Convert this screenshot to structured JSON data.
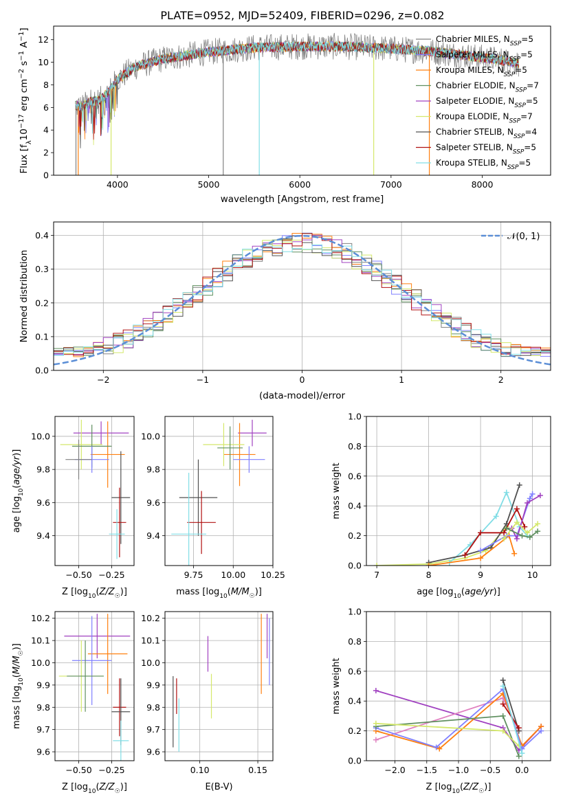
{
  "figure_title": "PLATE=0952, MJD=52409, FIBERID=0296, z=0.082",
  "colors": {
    "Chabrier MILES": "#808080",
    "Salpeter MILES": "#7f7fff",
    "Kroupa MILES": "#ff7f0e",
    "Chabrier ELODIE": "#5f8f5f",
    "Salpeter ELODIE": "#a040c0",
    "Kroupa ELODIE": "#d4e86a",
    "Chabrier STELIB": "#505050",
    "Salpeter STELIB": "#b01010",
    "Kroupa STELIB": "#80dde5",
    "normal": "#5b8ed6",
    "pink": "#e080c0"
  },
  "chart_data": [
    {
      "id": "spectrum",
      "type": "line",
      "title": "PLATE=0952, MJD=52409, FIBERID=0296, z=0.082",
      "xlabel": "wavelength [Angstrom, rest frame]",
      "ylabel": "Flux [f_λ10^-17 erg cm^-2 s^-1 A^-1]",
      "xlim": [
        3300,
        8750
      ],
      "ylim": [
        0,
        13.2
      ],
      "xticks": [
        4000,
        5000,
        6000,
        7000,
        8000
      ],
      "yticks": [
        0,
        2,
        4,
        6,
        8,
        10,
        12
      ],
      "legend_position": "right",
      "legend": [
        {
          "label": "Chabrier MILES, N_SSP=5",
          "base": "Chabrier MILES, N",
          "sub": "SSP",
          "tail": "=5",
          "color": "#808080"
        },
        {
          "label": "Salpeter MILES, N_SSP=5",
          "base": "Salpeter MILES, N",
          "sub": "SSP",
          "tail": "=5",
          "color": "#7f7fff"
        },
        {
          "label": "Kroupa MILES, N_SSP=5",
          "base": "Kroupa MILES, N",
          "sub": "SSP",
          "tail": "=5",
          "color": "#ff7f0e"
        },
        {
          "label": "Chabrier ELODIE, N_SSP=7",
          "base": "Chabrier ELODIE, N",
          "sub": "SSP",
          "tail": "=7",
          "color": "#5f8f5f"
        },
        {
          "label": "Salpeter ELODIE, N_SSP=5",
          "base": "Salpeter ELODIE, N",
          "sub": "SSP",
          "tail": "=5",
          "color": "#a040c0"
        },
        {
          "label": "Kroupa ELODIE, N_SSP=7",
          "base": "Kroupa ELODIE, N",
          "sub": "SSP",
          "tail": "=7",
          "color": "#d4e86a"
        },
        {
          "label": "Chabrier STELIB, N_SSP=4",
          "base": "Chabrier STELIB, N",
          "sub": "SSP",
          "tail": "=4",
          "color": "#505050"
        },
        {
          "label": "Salpeter STELIB, N_SSP=5",
          "base": "Salpeter STELIB, N",
          "sub": "SSP",
          "tail": "=5",
          "color": "#b01010"
        },
        {
          "label": "Kroupa STELIB, N_SSP=5",
          "base": "Kroupa STELIB, N",
          "sub": "SSP",
          "tail": "=5",
          "color": "#80dde5"
        }
      ],
      "continuum": {
        "x": [
          3540,
          3600,
          3700,
          3800,
          3900,
          4000,
          4200,
          4500,
          5000,
          5500,
          6000,
          6500,
          7000,
          7400,
          7800,
          8200,
          8400
        ],
        "y": [
          6.2,
          6.0,
          6.5,
          6.6,
          7.3,
          8.5,
          9.6,
          10.3,
          10.9,
          11.3,
          11.4,
          11.4,
          11.2,
          11.0,
          10.6,
          10.2,
          9.9
        ]
      },
      "data_range": [
        3540,
        8400
      ],
      "dips": [
        {
          "x": 3545,
          "y": 0.0,
          "color": "#808080"
        },
        {
          "x": 3570,
          "y": 0.0,
          "color": "#ff7f0e"
        },
        {
          "x": 3930,
          "y": 0.0,
          "color": "#d4e86a"
        },
        {
          "x": 5160,
          "y": 0.0,
          "color": "#808080"
        },
        {
          "x": 5555,
          "y": 0.0,
          "color": "#80dde5"
        },
        {
          "x": 6810,
          "y": 0.0,
          "color": "#d4e86a"
        },
        {
          "x": 7420,
          "y": 0.0,
          "color": "#ff7f0e"
        }
      ]
    },
    {
      "id": "residuals",
      "type": "line",
      "xlabel": "(data-model)/error",
      "ylabel": "Normed distribution",
      "xlim": [
        -2.5,
        2.5
      ],
      "ylim": [
        0,
        0.44
      ],
      "xticks": [
        -2,
        -1,
        0,
        1,
        2
      ],
      "yticks": [
        0.0,
        0.1,
        0.2,
        0.3,
        0.4
      ],
      "grid": true,
      "legend_position": "top-right",
      "legend_label": "𝒩(0, 1)",
      "normal": {
        "mu": 0,
        "sigma": 1
      }
    },
    {
      "id": "age-vs-Z",
      "type": "scatter",
      "xlabel": "Z [log10(Z/Z☉)]",
      "ylabel": "age [log10(age/yr)]",
      "xlim": [
        -0.68,
        -0.08
      ],
      "ylim": [
        9.22,
        10.12
      ],
      "xticks": [
        -0.5,
        -0.25
      ],
      "yticks": [
        9.4,
        9.6,
        9.8,
        10.0
      ],
      "grid": true,
      "points": [
        {
          "x": -0.33,
          "y": 10.02,
          "xerr": 0.21,
          "yerr": 0.07,
          "color": "#a040c0"
        },
        {
          "x": -0.28,
          "y": 9.89,
          "xerr": 0.13,
          "yerr": 0.2,
          "color": "#ff7f0e"
        },
        {
          "x": -0.48,
          "y": 9.95,
          "xerr": 0.16,
          "yerr": 0.15,
          "color": "#d4e86a"
        },
        {
          "x": -0.4,
          "y": 9.94,
          "xerr": 0.15,
          "yerr": 0.13,
          "color": "#5f8f5f"
        },
        {
          "x": -0.4,
          "y": 9.86,
          "xerr": 0.13,
          "yerr": 0.08,
          "color": "#7f7fff"
        },
        {
          "x": -0.5,
          "y": 9.86,
          "xerr": 0.1,
          "yerr": 0.12,
          "color": "#808080"
        },
        {
          "x": -0.18,
          "y": 9.63,
          "xerr": 0.07,
          "yerr": 0.28,
          "color": "#505050"
        },
        {
          "x": -0.19,
          "y": 9.48,
          "xerr": 0.05,
          "yerr": 0.21,
          "color": "#b01010"
        },
        {
          "x": -0.21,
          "y": 9.41,
          "xerr": 0.06,
          "yerr": 0.15,
          "color": "#80dde5"
        }
      ]
    },
    {
      "id": "age-vs-mass",
      "type": "scatter",
      "xlabel": "mass [log10(M/M☉)]",
      "xlim": [
        9.57,
        10.25
      ],
      "ylim": [
        9.22,
        10.12
      ],
      "xticks": [
        9.75,
        10.0,
        10.25
      ],
      "yticks": [
        9.4,
        9.6,
        9.8,
        10.0
      ],
      "grid": true,
      "points": [
        {
          "x": 10.12,
          "y": 10.02,
          "xerr": 0.09,
          "yerr": 0.08,
          "color": "#a040c0"
        },
        {
          "x": 10.04,
          "y": 9.89,
          "xerr": 0.1,
          "yerr": 0.19,
          "color": "#ff7f0e"
        },
        {
          "x": 9.94,
          "y": 9.95,
          "xerr": 0.13,
          "yerr": 0.13,
          "color": "#d4e86a"
        },
        {
          "x": 9.98,
          "y": 9.93,
          "xerr": 0.08,
          "yerr": 0.13,
          "color": "#5f8f5f"
        },
        {
          "x": 10.1,
          "y": 9.86,
          "xerr": 0.1,
          "yerr": 0.08,
          "color": "#7f7fff"
        },
        {
          "x": 9.78,
          "y": 9.63,
          "xerr": 0.12,
          "yerr": 0.23,
          "color": "#505050"
        },
        {
          "x": 9.8,
          "y": 9.48,
          "xerr": 0.09,
          "yerr": 0.19,
          "color": "#b01010"
        },
        {
          "x": 9.72,
          "y": 9.41,
          "xerr": 0.11,
          "yerr": 0.37,
          "color": "#80dde5"
        }
      ]
    },
    {
      "id": "massweight-vs-age",
      "type": "line",
      "xlabel": "age [log10(age/yr)]",
      "ylabel": "mass weight",
      "xlim": [
        6.8,
        10.35
      ],
      "ylim": [
        0,
        1.0
      ],
      "xticks": [
        7,
        8,
        9,
        10
      ],
      "yticks": [
        0.0,
        0.2,
        0.4,
        0.6,
        0.8,
        1.0
      ],
      "grid": true,
      "series": [
        {
          "x": [
            7.0,
            8.0,
            8.7,
            9.1,
            9.5
          ],
          "y": [
            0.0,
            0.01,
            0.05,
            0.1,
            0.26
          ],
          "color": "#d4e86a"
        },
        {
          "x": [
            8.4,
            8.8,
            9.3,
            9.5,
            9.75,
            9.9
          ],
          "y": [
            0.02,
            0.14,
            0.33,
            0.49,
            0.26,
            0.2
          ],
          "color": "#80dde5"
        },
        {
          "x": [
            8.0,
            8.7,
            9.2,
            9.5,
            9.75
          ],
          "y": [
            0.02,
            0.07,
            0.12,
            0.28,
            0.54
          ],
          "color": "#505050"
        },
        {
          "x": [
            8.7,
            9.0,
            9.45,
            9.7,
            9.85
          ],
          "y": [
            0.07,
            0.22,
            0.22,
            0.38,
            0.26
          ],
          "color": "#b01010"
        },
        {
          "x": [
            8.0,
            9.0,
            9.55,
            9.65
          ],
          "y": [
            0.0,
            0.05,
            0.2,
            0.08
          ],
          "color": "#ff7f0e"
        },
        {
          "x": [
            9.0,
            9.5,
            9.7,
            9.95,
            10.0
          ],
          "y": [
            0.1,
            0.2,
            0.2,
            0.45,
            0.48
          ],
          "color": "#7f7fff"
        },
        {
          "x": [
            9.6,
            9.7,
            9.9,
            10.15
          ],
          "y": [
            0.25,
            0.18,
            0.42,
            0.47
          ],
          "color": "#a040c0"
        },
        {
          "x": [
            9.45,
            9.7,
            9.9,
            10.1
          ],
          "y": [
            0.18,
            0.29,
            0.22,
            0.28
          ],
          "color": "#d4e86a"
        },
        {
          "x": [
            9.5,
            9.8,
            9.95,
            10.1
          ],
          "y": [
            0.25,
            0.2,
            0.19,
            0.23
          ],
          "color": "#5f8f5f"
        }
      ]
    },
    {
      "id": "mass-vs-Z",
      "type": "scatter",
      "xlabel": "Z [log10(Z/Z☉)]",
      "ylabel": "mass [log10(M/M☉)]",
      "xlim": [
        -0.68,
        -0.08
      ],
      "ylim": [
        9.56,
        10.23
      ],
      "xticks": [
        -0.5,
        -0.25
      ],
      "yticks": [
        9.6,
        9.7,
        9.8,
        9.9,
        10.0,
        10.1,
        10.2
      ],
      "grid": true,
      "points": [
        {
          "x": -0.36,
          "y": 10.12,
          "xerr": 0.25,
          "yerr": 0.1,
          "color": "#a040c0"
        },
        {
          "x": -0.28,
          "y": 10.04,
          "xerr": 0.15,
          "yerr": 0.18,
          "color": "#ff7f0e"
        },
        {
          "x": -0.4,
          "y": 10.01,
          "xerr": 0.15,
          "yerr": 0.2,
          "color": "#7f7fff"
        },
        {
          "x": -0.48,
          "y": 9.94,
          "xerr": 0.17,
          "yerr": 0.16,
          "color": "#d4e86a"
        },
        {
          "x": -0.45,
          "y": 9.94,
          "xerr": 0.14,
          "yerr": 0.16,
          "color": "#5f8f5f"
        },
        {
          "x": -0.19,
          "y": 9.8,
          "xerr": 0.05,
          "yerr": 0.13,
          "color": "#b01010"
        },
        {
          "x": -0.18,
          "y": 9.78,
          "xerr": 0.07,
          "yerr": 0.15,
          "color": "#505050"
        },
        {
          "x": -0.18,
          "y": 9.65,
          "xerr": 0.06,
          "yerr": 0.09,
          "color": "#80dde5"
        }
      ]
    },
    {
      "id": "mass-vs-EBV",
      "type": "scatter",
      "xlabel": "E(B-V)",
      "xlim": [
        0.07,
        0.163
      ],
      "ylim": [
        9.56,
        10.23
      ],
      "xticks": [
        0.05,
        0.1,
        0.15
      ],
      "yticks": [
        9.6,
        9.7,
        9.8,
        9.9,
        10.0,
        10.1,
        10.2
      ],
      "grid": true,
      "points": [
        {
          "x": 0.158,
          "y": 10.12,
          "xerr": 0.0,
          "yerr": 0.1,
          "color": "#a040c0"
        },
        {
          "x": 0.153,
          "y": 10.04,
          "xerr": 0.0,
          "yerr": 0.18,
          "color": "#ff7f0e"
        },
        {
          "x": 0.16,
          "y": 10.05,
          "xerr": 0.0,
          "yerr": 0.15,
          "color": "#7f7fff"
        },
        {
          "x": 0.107,
          "y": 10.04,
          "xerr": 0.0,
          "yerr": 0.08,
          "color": "#a040c0"
        },
        {
          "x": 0.11,
          "y": 9.85,
          "xerr": 0.0,
          "yerr": 0.1,
          "color": "#d4e86a"
        },
        {
          "x": 0.077,
          "y": 9.78,
          "xerr": 0.0,
          "yerr": 0.16,
          "color": "#505050"
        },
        {
          "x": 0.08,
          "y": 9.85,
          "xerr": 0.0,
          "yerr": 0.08,
          "color": "#b01010"
        },
        {
          "x": 0.082,
          "y": 9.72,
          "xerr": 0.0,
          "yerr": 0.12,
          "color": "#80dde5"
        }
      ]
    },
    {
      "id": "massweight-vs-Z",
      "type": "line",
      "xlabel": "Z [log10(Z/Z☉)]",
      "ylabel": "mass weight",
      "xlim": [
        -2.45,
        0.45
      ],
      "ylim": [
        0,
        1.0
      ],
      "xticks": [
        -2.0,
        -1.5,
        -1.0,
        -0.5,
        0.0
      ],
      "yticks": [
        0.0,
        0.2,
        0.4,
        0.6,
        0.8,
        1.0
      ],
      "grid": true,
      "series": [
        {
          "x": [
            -2.3,
            -0.3,
            -0.05,
            0.3
          ],
          "y": [
            0.47,
            0.22,
            0.07,
            0.23
          ],
          "color": "#a040c0"
        },
        {
          "x": [
            -2.3,
            -0.3,
            -0.05
          ],
          "y": [
            0.14,
            0.42,
            0.2
          ],
          "color": "#e080c0"
        },
        {
          "x": [
            -2.3,
            -1.3,
            -0.3,
            0.0,
            0.3
          ],
          "y": [
            0.2,
            0.08,
            0.45,
            0.1,
            0.23
          ],
          "color": "#ff7f0e"
        },
        {
          "x": [
            -2.3,
            -1.35,
            -0.3,
            0.0,
            0.3
          ],
          "y": [
            0.22,
            0.09,
            0.48,
            0.08,
            0.2
          ],
          "color": "#7f7fff"
        },
        {
          "x": [
            -2.3,
            -0.3,
            -0.05
          ],
          "y": [
            0.23,
            0.3,
            0.03
          ],
          "color": "#5f8f5f"
        },
        {
          "x": [
            -2.3,
            -0.3,
            -0.05
          ],
          "y": [
            0.25,
            0.2,
            0.1
          ],
          "color": "#d4e86a"
        },
        {
          "x": [
            -0.3,
            -0.05
          ],
          "y": [
            0.54,
            0.2
          ],
          "color": "#505050"
        },
        {
          "x": [
            -0.3,
            -0.05
          ],
          "y": [
            0.38,
            0.22
          ],
          "color": "#b01010"
        },
        {
          "x": [
            -0.3,
            0.0
          ],
          "y": [
            0.5,
            0.05
          ],
          "color": "#80dde5"
        }
      ]
    }
  ]
}
